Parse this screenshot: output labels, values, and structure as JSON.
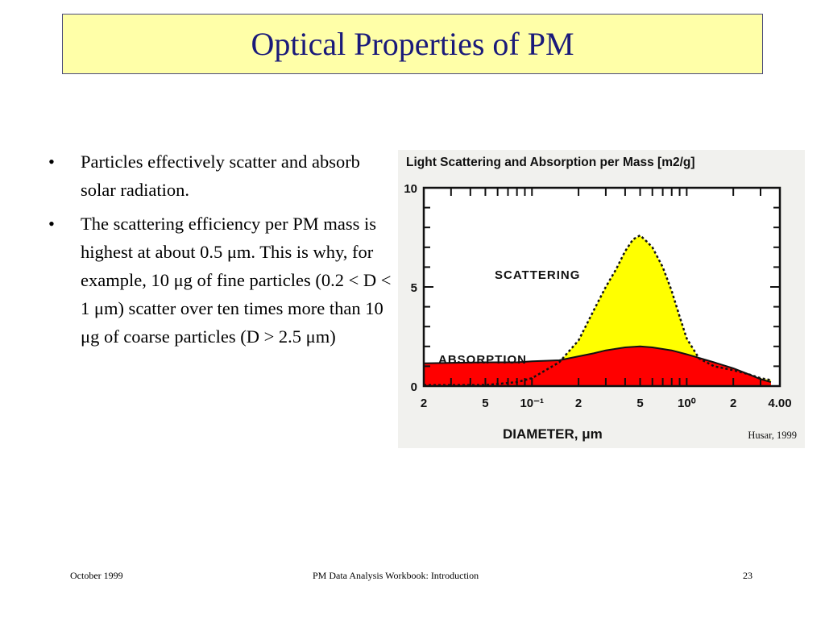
{
  "slide": {
    "title": "Optical Properties of PM",
    "bullets": [
      {
        "marker": "•",
        "text": "Particles effectively scatter and absorb solar radiation."
      },
      {
        "marker": "•",
        "text": "The scattering efficiency per PM mass is highest at about 0.5 μm. This is why, for example, 10 μg of fine particles (0.2 < D < 1 μm) scatter over ten times more than 10 μg of coarse particles (D > 2.5 μm)"
      }
    ],
    "footer": {
      "left": "October 1999",
      "center": "PM Data Analysis Workbook: Introduction",
      "right": "23"
    }
  },
  "chart_data": {
    "type": "area",
    "title": "Light Scattering and Absorption per Mass [m2/g]",
    "xlabel": "DIAMETER, μm",
    "ylabel": "",
    "x_scale": "log",
    "xlim": [
      0.02,
      4.0
    ],
    "ylim": [
      0,
      10
    ],
    "x_tick_labels": [
      "2",
      "5",
      "10⁻¹",
      "2",
      "5",
      "10⁰",
      "2",
      "4.00"
    ],
    "x_tick_values": [
      0.02,
      0.05,
      0.1,
      0.2,
      0.5,
      1.0,
      2.0,
      4.0
    ],
    "y_tick_labels": [
      "0",
      "5",
      "10"
    ],
    "y_tick_values": [
      0,
      5,
      10
    ],
    "credit": "Husar, 1999",
    "series": [
      {
        "name": "SCATTERING",
        "color": "#ffff00",
        "points": [
          [
            0.02,
            0.05
          ],
          [
            0.05,
            0.05
          ],
          [
            0.08,
            0.2
          ],
          [
            0.1,
            0.4
          ],
          [
            0.15,
            1.2
          ],
          [
            0.2,
            2.3
          ],
          [
            0.25,
            3.8
          ],
          [
            0.3,
            5.0
          ],
          [
            0.35,
            5.9
          ],
          [
            0.4,
            6.8
          ],
          [
            0.45,
            7.4
          ],
          [
            0.5,
            7.6
          ],
          [
            0.55,
            7.3
          ],
          [
            0.6,
            7.0
          ],
          [
            0.7,
            6.0
          ],
          [
            0.8,
            4.8
          ],
          [
            0.9,
            3.5
          ],
          [
            1.0,
            2.4
          ],
          [
            1.2,
            1.4
          ],
          [
            1.5,
            1.0
          ],
          [
            2.0,
            0.8
          ],
          [
            2.5,
            0.6
          ],
          [
            3.0,
            0.4
          ],
          [
            3.5,
            0.3
          ]
        ]
      },
      {
        "name": "ABSORPTION",
        "color": "#ff0000",
        "points": [
          [
            0.02,
            1.15
          ],
          [
            0.05,
            1.2
          ],
          [
            0.08,
            1.2
          ],
          [
            0.1,
            1.25
          ],
          [
            0.15,
            1.3
          ],
          [
            0.2,
            1.5
          ],
          [
            0.25,
            1.65
          ],
          [
            0.3,
            1.8
          ],
          [
            0.4,
            1.95
          ],
          [
            0.5,
            2.0
          ],
          [
            0.6,
            1.95
          ],
          [
            0.8,
            1.8
          ],
          [
            1.0,
            1.6
          ],
          [
            1.5,
            1.2
          ],
          [
            2.0,
            0.9
          ],
          [
            2.5,
            0.6
          ],
          [
            3.0,
            0.35
          ],
          [
            3.5,
            0.2
          ]
        ]
      }
    ]
  }
}
